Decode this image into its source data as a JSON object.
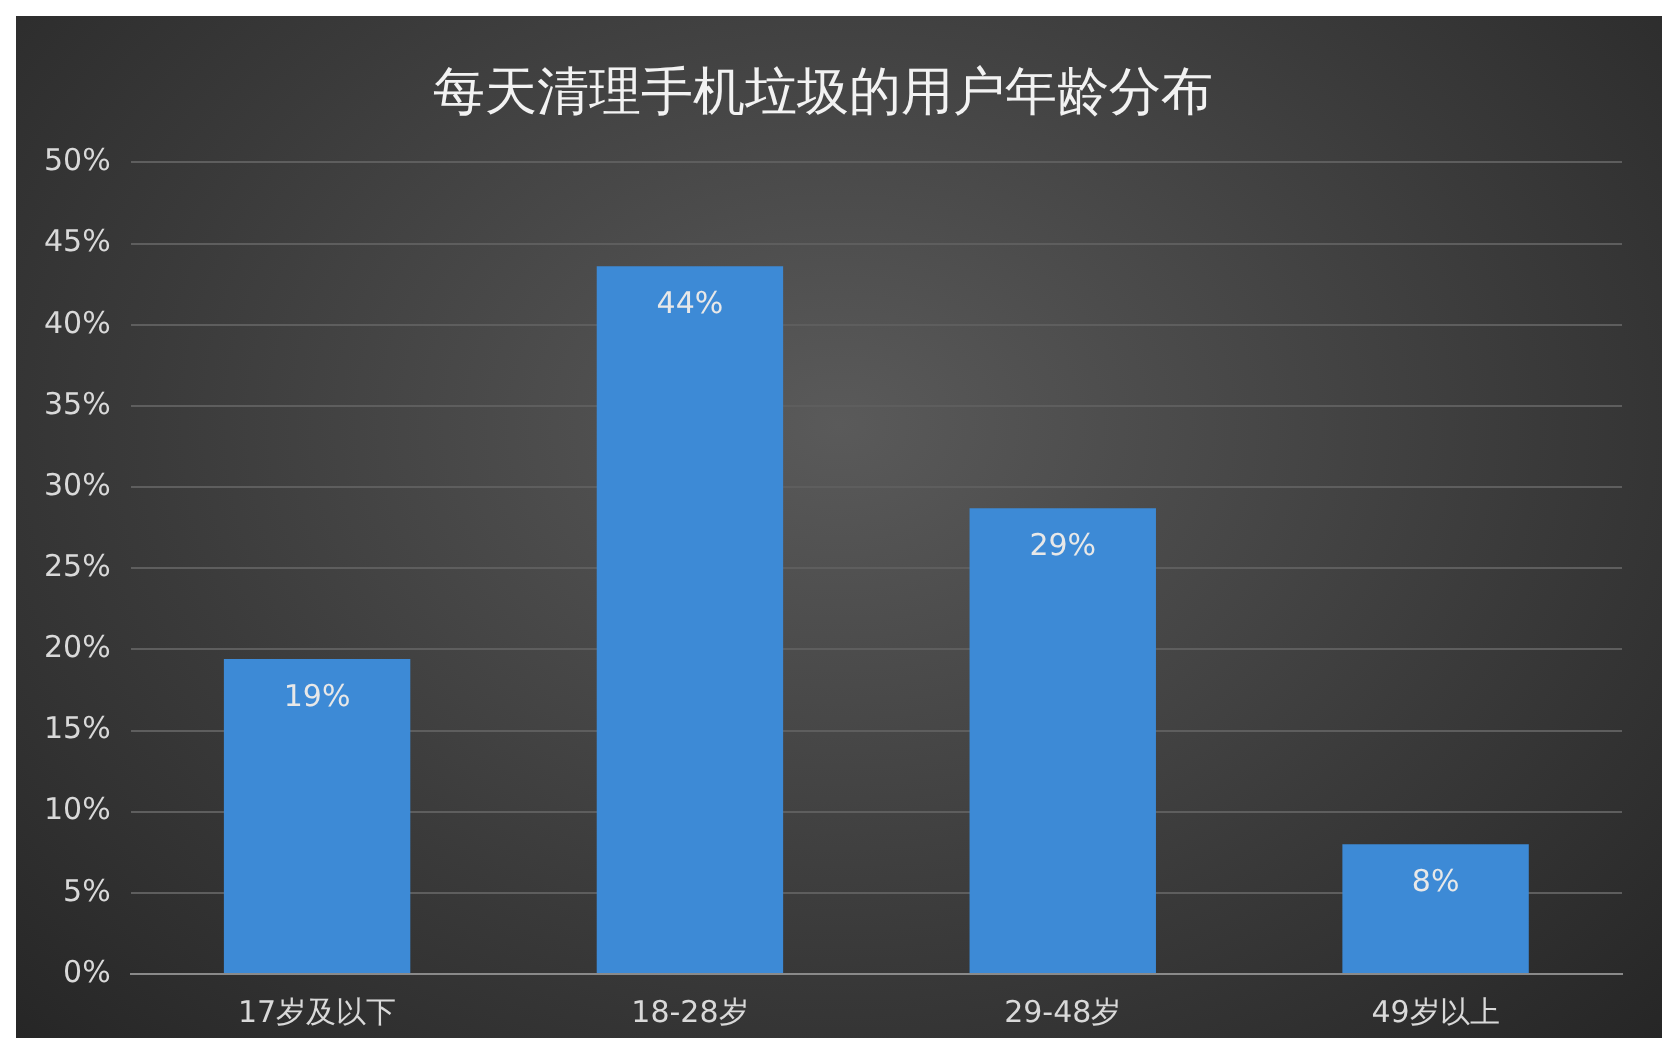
{
  "chart_data": {
    "type": "bar",
    "title": "每天清理手机垃圾的用户年龄分布",
    "categories": [
      "17岁及以下",
      "18-28岁",
      "29-48岁",
      "49岁以上"
    ],
    "values": [
      19.4,
      43.6,
      28.7,
      8.0
    ],
    "value_labels": [
      "19%",
      "44%",
      "29%",
      "8%"
    ],
    "color": "#3d8ad6",
    "ylim": [
      0,
      50
    ],
    "yticks": [
      {
        "value": 0,
        "label": "0%"
      },
      {
        "value": 5,
        "label": "5%"
      },
      {
        "value": 10,
        "label": "10%"
      },
      {
        "value": 15,
        "label": "15%"
      },
      {
        "value": 20,
        "label": "20%"
      },
      {
        "value": 25,
        "label": "25%"
      },
      {
        "value": 30,
        "label": "30%"
      },
      {
        "value": 35,
        "label": "35%"
      },
      {
        "value": 40,
        "label": "40%"
      },
      {
        "value": 45,
        "label": "45%"
      },
      {
        "value": 50,
        "label": "50%"
      }
    ],
    "grid": "y"
  }
}
